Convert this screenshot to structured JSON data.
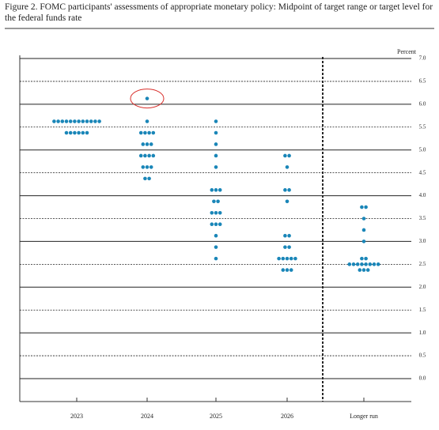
{
  "chart_data": {
    "type": "dot",
    "title": "Figure 2.  FOMC participants' assessments of appropriate monetary policy: Midpoint of target range or target level for the federal funds rate",
    "y_label": "Percent",
    "categories": [
      "2023",
      "2024",
      "2025",
      "2026",
      "Longer run"
    ],
    "dots": [
      [
        {
          "rate": 5.625,
          "count": 12
        },
        {
          "rate": 5.375,
          "count": 6
        }
      ],
      [
        {
          "rate": 6.125,
          "count": 1
        },
        {
          "rate": 5.625,
          "count": 1
        },
        {
          "rate": 5.375,
          "count": 4
        },
        {
          "rate": 5.125,
          "count": 3
        },
        {
          "rate": 4.875,
          "count": 4
        },
        {
          "rate": 4.625,
          "count": 3
        },
        {
          "rate": 4.375,
          "count": 2
        }
      ],
      [
        {
          "rate": 5.625,
          "count": 1
        },
        {
          "rate": 5.375,
          "count": 1
        },
        {
          "rate": 5.125,
          "count": 1
        },
        {
          "rate": 4.875,
          "count": 1
        },
        {
          "rate": 4.625,
          "count": 1
        },
        {
          "rate": 4.125,
          "count": 3
        },
        {
          "rate": 3.875,
          "count": 2
        },
        {
          "rate": 3.625,
          "count": 3
        },
        {
          "rate": 3.375,
          "count": 3
        },
        {
          "rate": 3.125,
          "count": 1
        },
        {
          "rate": 2.875,
          "count": 1
        },
        {
          "rate": 2.625,
          "count": 1
        }
      ],
      [
        {
          "rate": 4.875,
          "count": 2
        },
        {
          "rate": 4.625,
          "count": 1
        },
        {
          "rate": 4.125,
          "count": 2
        },
        {
          "rate": 3.875,
          "count": 1
        },
        {
          "rate": 3.125,
          "count": 2
        },
        {
          "rate": 2.875,
          "count": 2
        },
        {
          "rate": 2.625,
          "count": 5
        },
        {
          "rate": 2.375,
          "count": 3
        }
      ],
      [
        {
          "rate": 3.75,
          "count": 2
        },
        {
          "rate": 3.5,
          "count": 1
        },
        {
          "rate": 3.25,
          "count": 1
        },
        {
          "rate": 3.0,
          "count": 1
        },
        {
          "rate": 2.625,
          "count": 2
        },
        {
          "rate": 2.5,
          "count": 8
        },
        {
          "rate": 2.375,
          "count": 3
        }
      ]
    ],
    "color": "#1a86b8",
    "ylim": [
      0,
      7
    ],
    "yticks": [
      {
        "value": 0,
        "label": "0.0"
      },
      {
        "value": 0.5,
        "label": "0.5"
      },
      {
        "value": 1,
        "label": "1.0"
      },
      {
        "value": 1.5,
        "label": "1.5"
      },
      {
        "value": 2,
        "label": "2.0"
      },
      {
        "value": 2.5,
        "label": "2.5"
      },
      {
        "value": 3,
        "label": "3.0"
      },
      {
        "value": 3.5,
        "label": "3.5"
      },
      {
        "value": 4,
        "label": "4.0"
      },
      {
        "value": 4.5,
        "label": "4.5"
      },
      {
        "value": 5,
        "label": "5.0"
      },
      {
        "value": 5.5,
        "label": "5.5"
      },
      {
        "value": 6,
        "label": "6.0"
      },
      {
        "value": 6.5,
        "label": "6.5"
      },
      {
        "value": 7,
        "label": "7.0"
      }
    ],
    "grid": true
  }
}
